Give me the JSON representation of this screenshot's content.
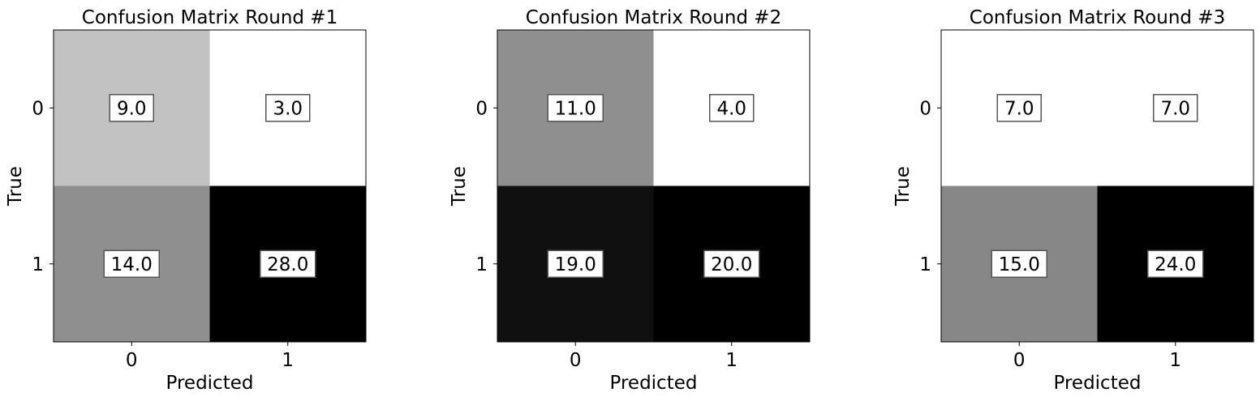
{
  "chart_data": [
    {
      "type": "heatmap",
      "title": "Confusion Matrix Round #1",
      "xlabel": "Predicted",
      "ylabel": "True",
      "x_ticks": [
        "0",
        "1"
      ],
      "y_ticks": [
        "0",
        "1"
      ],
      "values": [
        [
          9.0,
          3.0
        ],
        [
          14.0,
          28.0
        ]
      ],
      "labels": [
        [
          "9.0",
          "3.0"
        ],
        [
          "14.0",
          "28.0"
        ]
      ],
      "colormap": "gray_r"
    },
    {
      "type": "heatmap",
      "title": "Confusion Matrix Round #2",
      "xlabel": "Predicted",
      "ylabel": "True",
      "x_ticks": [
        "0",
        "1"
      ],
      "y_ticks": [
        "0",
        "1"
      ],
      "values": [
        [
          11.0,
          4.0
        ],
        [
          19.0,
          20.0
        ]
      ],
      "labels": [
        [
          "11.0",
          "4.0"
        ],
        [
          "19.0",
          "20.0"
        ]
      ],
      "colormap": "gray_r"
    },
    {
      "type": "heatmap",
      "title": "Confusion Matrix Round #3",
      "xlabel": "Predicted",
      "ylabel": "True",
      "x_ticks": [
        "0",
        "1"
      ],
      "y_ticks": [
        "0",
        "1"
      ],
      "values": [
        [
          7.0,
          7.0
        ],
        [
          15.0,
          24.0
        ]
      ],
      "labels": [
        [
          "7.0",
          "7.0"
        ],
        [
          "15.0",
          "24.0"
        ]
      ],
      "colormap": "gray_r"
    }
  ]
}
